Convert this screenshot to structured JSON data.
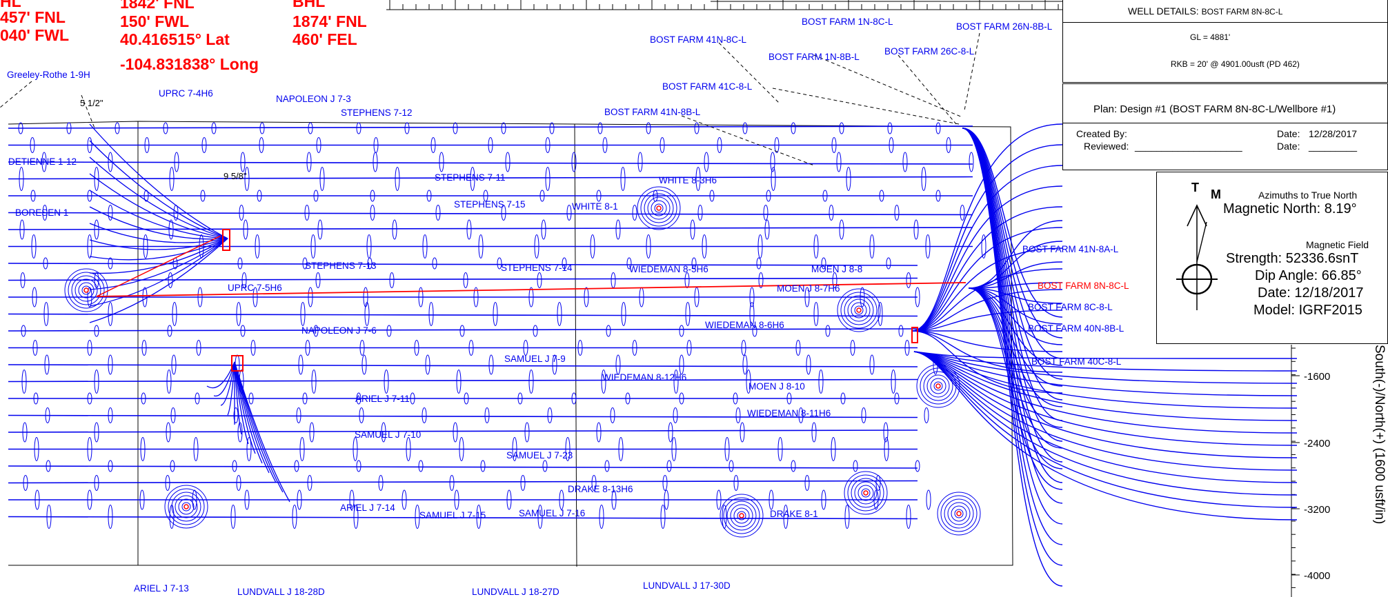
{
  "header_texts": {
    "shl_cut": "HL",
    "shl_fnl": "457' FNL",
    "shl_fwl": "040' FWL",
    "mid_fnl": "1842' FNL",
    "mid_fwl": "150' FWL",
    "mid_lat": "40.416515° Lat",
    "mid_long": "-104.831838° Long",
    "bhl": "BHL",
    "bhl_fnl": "1874' FNL",
    "bhl_fel": "460' FEL"
  },
  "casing_labels": [
    "5 1/2\"",
    "9 5/8\""
  ],
  "well_labels": {
    "greeley_rothe": "Greeley-Rothe 1-9H",
    "uprc_7_4h6": "UPRC 7-4H6",
    "napoleon_j_7_3": "NAPOLEON J 7-3",
    "stephens_7_12": "STEPHENS 7-12",
    "detienne": "DETIENNE 1-12",
    "boresen": "BORESEN 1",
    "stephens_7_11": "STEPHENS 7-11",
    "stephens_7_15": "STEPHENS 7-15",
    "stephens_7_13": "STEPHENS 7-13",
    "stephens_7_14": "STEPHENS 7-14",
    "uprc_7_5h6": "UPRC 7-5H6",
    "napoleon_j_7_6": "NAPOLEON J 7-6",
    "samuel_j_7_9": "SAMUEL J 7-9",
    "ariel_j_7_11": "ARIEL J 7-11",
    "samuel_j_7_10": "SAMUEL J 7-10",
    "samuel_j_7_23": "SAMUEL J 7-23",
    "ariel_j_7_14": "ARIEL J 7-14",
    "samuel_j_7_15": "SAMUEL J 7-15",
    "samuel_j_7_16": "SAMUEL J 7-16",
    "ariel_j_7_13": "ARIEL J 7-13",
    "lundvall_18_28d": "LUNDVALL J 18-28D",
    "lundvall_18_27d": "LUNDVALL J 18-27D",
    "lundvall_17_30d": "LUNDVALL J 17-30D",
    "bf_1n_8c": "BOST FARM 1N-8C-L",
    "bf_26n_8b": "BOST FARM 26N-8B-L",
    "bf_41n_8c": "BOST FARM 41N-8C-L",
    "bf_1n_8b": "BOST FARM 1N-8B-L",
    "bf_26c_8": "BOST FARM 26C-8-L",
    "bf_41c_8": "BOST FARM 41C-8-L",
    "bf_41n_8b": "BOST FARM 41N-8B-L",
    "white_8_3h6": "WHITE 8-3H6",
    "white_8_1": "WHITE 8-1",
    "wiedeman_8_5h6": "WIEDEMAN 8-5H6",
    "moen_j_8_8": "MOEN J 8-8",
    "moen_j_8_7h6": "MOEN J 8-7H6",
    "wiedeman_8_6h6": "WIEDEMAN 8-6H6",
    "wiedeman_8_12h6": "WIEDEMAN 8-12H6",
    "moen_j_8_10": "MOEN J 8-10",
    "wiedeman_8_11h6": "WIEDEMAN 8-11H6",
    "drake_8_13h6": "DRAKE 8-13H6",
    "drake_8_1": "DRAKE 8-1",
    "bf_41n_8a": "BOST FARM 41N-8A-L",
    "bf_8n_8c": "BOST FARM 8N-8C-L",
    "bf_8c_8": "BOST FARM 8C-8-L",
    "bf_40n_8b": "BOST FARM 40N-8B-L",
    "bf_40c_8": "BOST FARM 40C-8-L"
  },
  "well_details": {
    "title": "WELL DETAILS:",
    "well": "BOST FARM 8N-8C-L",
    "gl": "GL = 4881'",
    "rkb": "RKB = 20' @ 4901.00usft (PD 462)"
  },
  "plan_box": {
    "plan": "Plan: Design #1 (BOST FARM 8N-8C-L/Wellbore #1)",
    "created_by_label": "Created By:",
    "reviewed_label": "Reviewed:",
    "reviewed_blank": "____________________",
    "date_label": "Date:",
    "date_value": "12/28/2017",
    "date2_label": "Date:",
    "date2_blank": "_________"
  },
  "north_box": {
    "t": "T",
    "m": "M",
    "azimuths": "Azimuths to True North",
    "mag_north": "Magnetic North: 8.19°",
    "mag_field": "Magnetic Field",
    "strength": "Strength: 52336.6snT",
    "dip": "Dip Angle: 66.85°",
    "date": "Date: 12/18/2017",
    "model": "Model: IGRF2015"
  },
  "axis": {
    "ylabel": "South(-)/North(+) (1600 usft/in)",
    "ticks": [
      "-1600",
      "-2400",
      "-3200",
      "-4000"
    ]
  },
  "colors": {
    "trajectory": "#0000ee",
    "plan": "#ff0000",
    "grid": "#000000"
  }
}
